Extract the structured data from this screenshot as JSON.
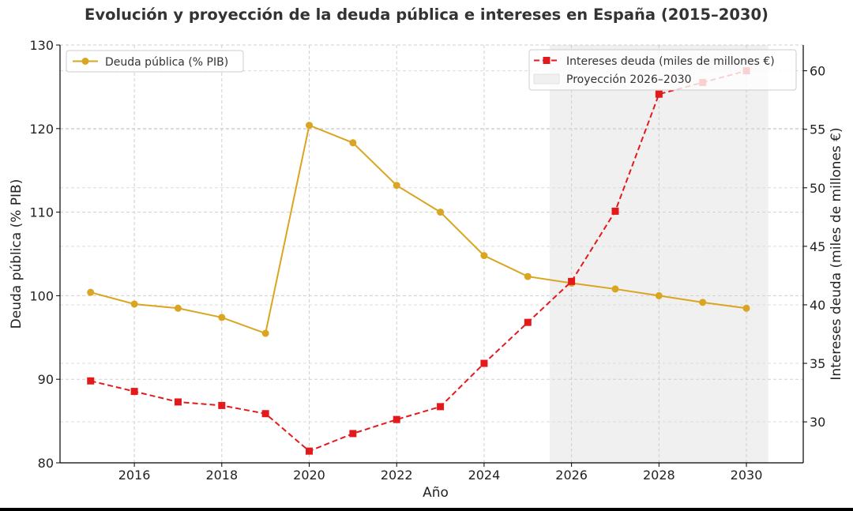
{
  "chart_data": {
    "type": "line",
    "title": "Evolución y proyección de la deuda pública e intereses en España (2015–2030)",
    "xlabel": "Año",
    "ylabel_left": "Deuda pública (% PIB)",
    "ylabel_right": "Intereses deuda (miles de millones €)",
    "x": [
      2015,
      2016,
      2017,
      2018,
      2019,
      2020,
      2021,
      2022,
      2023,
      2024,
      2025,
      2026,
      2027,
      2028,
      2029,
      2030
    ],
    "x_ticks": [
      "2016",
      "2018",
      "2020",
      "2022",
      "2024",
      "2026",
      "2028",
      "2030"
    ],
    "x_tick_values": [
      2016,
      2018,
      2020,
      2022,
      2024,
      2026,
      2028,
      2030
    ],
    "xlim": [
      2014.3,
      2031.3
    ],
    "y_left_ticks": [
      "80",
      "90",
      "100",
      "110",
      "120",
      "130"
    ],
    "y_left_tick_values": [
      80,
      90,
      100,
      110,
      120,
      130
    ],
    "ylim_left": [
      80,
      130
    ],
    "y_right_ticks": [
      "30",
      "35",
      "40",
      "45",
      "50",
      "55",
      "60"
    ],
    "y_right_tick_values": [
      30,
      35,
      40,
      45,
      50,
      55,
      60
    ],
    "ylim_right": [
      26.5,
      62.2
    ],
    "grid": true,
    "projection_band": {
      "label": "Proyección 2026–2030",
      "from": 2025.5,
      "to": 2030.5,
      "color": "#f0f0f0"
    },
    "series": [
      {
        "name": "Deuda pública (% PIB)",
        "axis": "left",
        "color": "#DAA520",
        "marker": "circle",
        "style": "solid",
        "values": [
          100.4,
          99.0,
          98.5,
          97.4,
          95.5,
          120.4,
          118.3,
          113.2,
          110.0,
          104.8,
          102.3,
          101.5,
          100.8,
          100.0,
          99.2,
          98.5
        ]
      },
      {
        "name": "Intereses deuda (miles de millones €)",
        "axis": "right",
        "color": "#E31A1C",
        "marker": "square",
        "style": "dashed",
        "values": [
          33.5,
          32.6,
          31.7,
          31.4,
          30.7,
          27.5,
          29.0,
          30.2,
          31.3,
          35.0,
          38.5,
          42.0,
          48.0,
          58.0,
          59.0,
          60.0
        ]
      }
    ],
    "legend_left_position": "top-left",
    "legend_right_position": "top-right"
  }
}
